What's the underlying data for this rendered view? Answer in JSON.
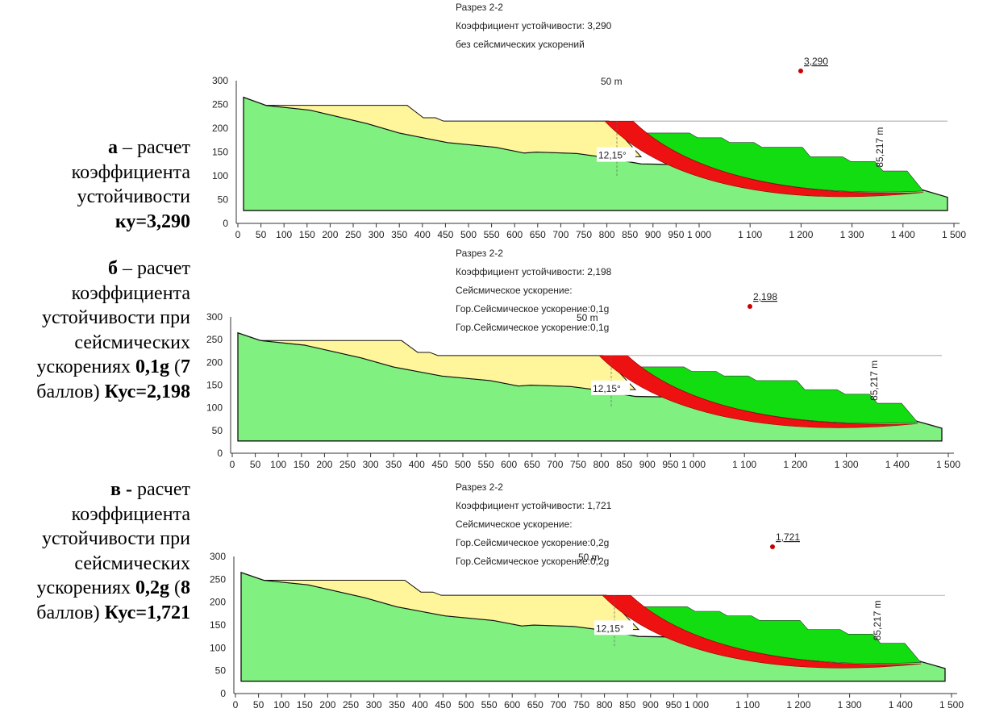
{
  "captions": [
    {
      "parts": [
        {
          "text": "а",
          "bold": true
        },
        {
          "text": " – расчет коэффициента устойчивости ",
          "bold": false
        },
        {
          "text": "ку=3,290",
          "bold": true
        }
      ]
    },
    {
      "parts": [
        {
          "text": "б",
          "bold": true
        },
        {
          "text": " – расчет коэффициента устойчивости при сейсмических ускорениях ",
          "bold": false
        },
        {
          "text": "0,1g",
          "bold": true
        },
        {
          "text": " (",
          "bold": false
        },
        {
          "text": "7",
          "bold": true
        },
        {
          "text": " баллов) ",
          "bold": false
        },
        {
          "text": "Кус=2,198",
          "bold": true
        }
      ]
    },
    {
      "parts": [
        {
          "text": "в - ",
          "bold": true
        },
        {
          "text": "расчет коэффициента устойчивости при сейсмических ускорениях ",
          "bold": false
        },
        {
          "text": "0,2g",
          "bold": true
        },
        {
          "text": " (",
          "bold": false
        },
        {
          "text": "8",
          "bold": true
        },
        {
          "text": " баллов) ",
          "bold": false
        },
        {
          "text": "Кус=1,721",
          "bold": true
        }
      ]
    }
  ],
  "panels": [
    {
      "lines": [
        "Разрез 2-2",
        "Коэффициент устойчивости: 3,290",
        "без сейсмических ускорений"
      ],
      "marker": "3,290",
      "distance": "50 m",
      "angle": "12,15°",
      "height": "85,217 m",
      "yticks": [
        "0",
        "50",
        "100",
        "150",
        "200",
        "250",
        "300"
      ],
      "xticks": [
        "0",
        "50",
        "100",
        "150",
        "200",
        "250",
        "300",
        "350",
        "400",
        "450",
        "500",
        "550",
        "600",
        "650",
        "700",
        "750",
        "800",
        "850",
        "900",
        "950",
        "1 000",
        "1 100",
        "1 200",
        "1 300",
        "1 400",
        "1 500"
      ]
    },
    {
      "lines": [
        "Разрез 2-2",
        "Коэффициент устойчивости: 2,198",
        "Сейсмическое ускорение:",
        "Гор.Сейсмическое ускорение:0,1g",
        "Гор.Сейсмическое ускорение:0,1g"
      ],
      "marker": "2,198",
      "distance": "50 m",
      "angle": "12,15°",
      "height": "85,217 m",
      "yticks": [
        "0",
        "50",
        "100",
        "150",
        "200",
        "250",
        "300"
      ],
      "xticks": [
        "0",
        "50",
        "100",
        "150",
        "200",
        "250",
        "300",
        "350",
        "400",
        "450",
        "500",
        "550",
        "600",
        "650",
        "700",
        "750",
        "800",
        "850",
        "900",
        "950",
        "1 000",
        "1 100",
        "1 200",
        "1 300",
        "1 400",
        "1 500"
      ]
    },
    {
      "lines": [
        "Разрез 2-2",
        "Коэффициент устойчивости: 1,721",
        "Сейсмическое ускорение:",
        "Гор.Сейсмическое ускорение:0,2g",
        "Гор.Сейсмическое ускорение:0,2g"
      ],
      "marker": "1,721",
      "distance": "50 m",
      "angle": "12,15°",
      "height": "85,217 m",
      "yticks": [
        "0",
        "50",
        "100",
        "150",
        "200",
        "250",
        "300"
      ],
      "xticks": [
        "0",
        "50",
        "100",
        "150",
        "200",
        "250",
        "300",
        "350",
        "400",
        "450",
        "500",
        "550",
        "600",
        "650",
        "700",
        "750",
        "800",
        "850",
        "900",
        "950",
        "1 000",
        "1 100",
        "1 200",
        "1 300",
        "1 400",
        "1 500"
      ]
    }
  ]
}
